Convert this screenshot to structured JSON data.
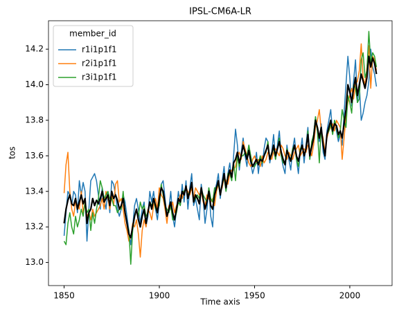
{
  "chart_data": {
    "type": "line",
    "title": "IPSL-CM6A-LR",
    "xlabel": "Time axis",
    "ylabel": "tos",
    "legend_title": "member_id",
    "legend": "upper left",
    "xlim": [
      1841.8,
      2022.2
    ],
    "xticks": [
      1850,
      1900,
      1950,
      2000
    ],
    "ylim": [
      12.87,
      14.36
    ],
    "yticks": [
      {
        "value": 13,
        "label": "13.0"
      },
      13.2,
      13.4,
      13.6,
      13.8,
      {
        "value": 14,
        "label": "14.0"
      },
      14.2
    ],
    "x": [
      1850,
      1851,
      1852,
      1853,
      1854,
      1855,
      1856,
      1857,
      1858,
      1859,
      1860,
      1861,
      1862,
      1863,
      1864,
      1865,
      1866,
      1867,
      1868,
      1869,
      1870,
      1871,
      1872,
      1873,
      1874,
      1875,
      1876,
      1877,
      1878,
      1879,
      1880,
      1881,
      1882,
      1883,
      1884,
      1885,
      1886,
      1887,
      1888,
      1889,
      1890,
      1891,
      1892,
      1893,
      1894,
      1895,
      1896,
      1897,
      1898,
      1899,
      1900,
      1901,
      1902,
      1903,
      1904,
      1905,
      1906,
      1907,
      1908,
      1909,
      1910,
      1911,
      1912,
      1913,
      1914,
      1915,
      1916,
      1917,
      1918,
      1919,
      1920,
      1921,
      1922,
      1923,
      1924,
      1925,
      1926,
      1927,
      1928,
      1929,
      1930,
      1931,
      1932,
      1933,
      1934,
      1935,
      1936,
      1937,
      1938,
      1939,
      1940,
      1941,
      1942,
      1943,
      1944,
      1945,
      1946,
      1947,
      1948,
      1949,
      1950,
      1951,
      1952,
      1953,
      1954,
      1955,
      1956,
      1957,
      1958,
      1959,
      1960,
      1961,
      1962,
      1963,
      1964,
      1965,
      1966,
      1967,
      1968,
      1969,
      1970,
      1971,
      1972,
      1973,
      1974,
      1975,
      1976,
      1977,
      1978,
      1979,
      1980,
      1981,
      1982,
      1983,
      1984,
      1985,
      1986,
      1987,
      1988,
      1989,
      1990,
      1991,
      1992,
      1993,
      1994,
      1995,
      1996,
      1997,
      1998,
      1999,
      2000,
      2001,
      2002,
      2003,
      2004,
      2005,
      2006,
      2007,
      2008,
      2009,
      2010,
      2011,
      2012,
      2013,
      2014
    ],
    "series": [
      {
        "name": "r1i1p1f1",
        "color": "#1f77b4",
        "values": [
          13.15,
          13.28,
          13.4,
          13.38,
          13.32,
          13.4,
          13.38,
          13.28,
          13.46,
          13.38,
          13.45,
          13.4,
          13.12,
          13.3,
          13.46,
          13.48,
          13.5,
          13.46,
          13.38,
          13.3,
          13.42,
          13.36,
          13.3,
          13.4,
          13.28,
          13.46,
          13.44,
          13.38,
          13.3,
          13.26,
          13.3,
          13.38,
          13.34,
          13.26,
          13.18,
          13.1,
          13.2,
          13.32,
          13.36,
          13.3,
          13.22,
          13.3,
          13.34,
          13.2,
          13.26,
          13.4,
          13.34,
          13.4,
          13.3,
          13.24,
          13.34,
          13.44,
          13.46,
          13.36,
          13.26,
          13.3,
          13.4,
          13.26,
          13.2,
          13.3,
          13.4,
          13.32,
          13.44,
          13.34,
          13.46,
          13.3,
          13.42,
          13.5,
          13.32,
          13.36,
          13.3,
          13.24,
          13.44,
          13.36,
          13.22,
          13.3,
          13.42,
          13.26,
          13.2,
          13.4,
          13.44,
          13.5,
          13.36,
          13.46,
          13.54,
          13.4,
          13.5,
          13.56,
          13.46,
          13.6,
          13.75,
          13.66,
          13.52,
          13.62,
          13.7,
          13.6,
          13.54,
          13.66,
          13.56,
          13.5,
          13.54,
          13.62,
          13.5,
          13.6,
          13.54,
          13.64,
          13.7,
          13.68,
          13.56,
          13.62,
          13.72,
          13.58,
          13.66,
          13.74,
          13.6,
          13.54,
          13.5,
          13.66,
          13.58,
          13.52,
          13.64,
          13.7,
          13.58,
          13.5,
          13.62,
          13.7,
          13.56,
          13.66,
          13.76,
          13.58,
          13.66,
          13.72,
          13.82,
          13.74,
          13.68,
          13.78,
          13.62,
          13.58,
          13.74,
          13.8,
          13.86,
          13.72,
          13.8,
          13.74,
          13.68,
          13.72,
          13.66,
          13.84,
          14.0,
          14.16,
          14.04,
          13.88,
          14.02,
          14.14,
          13.9,
          14.0,
          13.8,
          13.84,
          13.9,
          13.94,
          14.02,
          14.2,
          14.1,
          14.06,
          13.99
        ]
      },
      {
        "name": "r2i1p1f1",
        "color": "#ff7f0e",
        "values": [
          13.39,
          13.55,
          13.62,
          13.4,
          13.3,
          13.26,
          13.34,
          13.32,
          13.3,
          13.4,
          13.28,
          13.34,
          13.26,
          13.28,
          13.24,
          13.3,
          13.26,
          13.28,
          13.3,
          13.32,
          13.36,
          13.3,
          13.4,
          13.36,
          13.3,
          13.38,
          13.32,
          13.44,
          13.46,
          13.34,
          13.36,
          13.3,
          13.22,
          13.18,
          13.12,
          13.14,
          13.22,
          13.2,
          13.24,
          13.16,
          13.03,
          13.18,
          13.24,
          13.2,
          13.3,
          13.28,
          13.24,
          13.32,
          13.36,
          13.3,
          13.42,
          13.38,
          13.36,
          13.3,
          13.22,
          13.32,
          13.3,
          13.34,
          13.28,
          13.32,
          13.34,
          13.38,
          13.36,
          13.4,
          13.42,
          13.4,
          13.38,
          13.42,
          13.36,
          13.42,
          13.4,
          13.38,
          13.4,
          13.34,
          13.32,
          13.38,
          13.36,
          13.34,
          13.36,
          13.32,
          13.4,
          13.44,
          13.4,
          13.42,
          13.48,
          13.46,
          13.44,
          13.5,
          13.52,
          13.52,
          13.54,
          13.6,
          13.62,
          13.58,
          13.68,
          13.64,
          13.6,
          13.56,
          13.54,
          13.58,
          13.6,
          13.56,
          13.58,
          13.54,
          13.6,
          13.56,
          13.58,
          13.62,
          13.6,
          13.58,
          13.62,
          13.64,
          13.62,
          13.6,
          13.66,
          13.64,
          13.6,
          13.58,
          13.62,
          13.6,
          13.58,
          13.62,
          13.64,
          13.66,
          13.6,
          13.62,
          13.64,
          13.62,
          13.66,
          13.64,
          13.6,
          13.66,
          13.76,
          13.8,
          13.86,
          13.74,
          13.7,
          13.62,
          13.7,
          13.74,
          13.76,
          13.78,
          13.74,
          13.8,
          13.78,
          13.76,
          13.58,
          13.7,
          13.82,
          13.9,
          13.94,
          13.98,
          13.92,
          14.0,
          14.02,
          14.08,
          14.23,
          14.04,
          14.0,
          14.1,
          14.22,
          13.98,
          14.16,
          14.14,
          14.08
        ]
      },
      {
        "name": "r3i1p1f1",
        "color": "#2ca02c",
        "values": [
          13.12,
          13.1,
          13.22,
          13.28,
          13.2,
          13.16,
          13.26,
          13.2,
          13.24,
          13.3,
          13.26,
          13.34,
          13.28,
          13.3,
          13.18,
          13.28,
          13.22,
          13.3,
          13.36,
          13.46,
          13.42,
          13.36,
          13.38,
          13.4,
          13.36,
          13.36,
          13.32,
          13.32,
          13.28,
          13.3,
          13.3,
          13.4,
          13.28,
          13.22,
          13.18,
          12.99,
          13.18,
          13.26,
          13.3,
          13.26,
          13.34,
          13.3,
          13.32,
          13.26,
          13.28,
          13.34,
          13.32,
          13.36,
          13.3,
          13.3,
          13.32,
          13.44,
          13.38,
          13.32,
          13.3,
          13.28,
          13.32,
          13.24,
          13.24,
          13.28,
          13.34,
          13.32,
          13.4,
          13.4,
          13.42,
          13.38,
          13.4,
          13.44,
          13.34,
          13.36,
          13.38,
          13.36,
          13.42,
          13.38,
          13.36,
          13.34,
          13.42,
          13.36,
          13.34,
          13.42,
          13.42,
          13.44,
          13.38,
          13.44,
          13.48,
          13.4,
          13.5,
          13.5,
          13.46,
          13.56,
          13.46,
          13.6,
          13.54,
          13.6,
          13.6,
          13.62,
          13.6,
          13.66,
          13.6,
          13.54,
          13.54,
          13.56,
          13.56,
          13.6,
          13.56,
          13.6,
          13.62,
          13.68,
          13.58,
          13.62,
          13.64,
          13.58,
          13.64,
          13.7,
          13.6,
          13.56,
          13.56,
          13.64,
          13.6,
          13.58,
          13.64,
          13.66,
          13.58,
          13.54,
          13.64,
          13.66,
          13.6,
          13.64,
          13.74,
          13.58,
          13.68,
          13.72,
          13.82,
          13.74,
          13.56,
          13.76,
          13.66,
          13.6,
          13.72,
          13.74,
          13.78,
          13.72,
          13.8,
          13.76,
          13.7,
          13.74,
          13.86,
          13.8,
          13.76,
          13.94,
          13.9,
          13.84,
          14.0,
          13.98,
          13.9,
          13.92,
          14.14,
          14.18,
          14.04,
          14.08,
          14.3,
          14.12,
          14.18,
          14.16,
          14.1
        ]
      },
      {
        "color": "#000000",
        "values": [
          13.22,
          13.3,
          13.35,
          13.38,
          13.33,
          13.32,
          13.36,
          13.3,
          13.34,
          13.38,
          13.33,
          13.36,
          13.22,
          13.28,
          13.3,
          13.36,
          13.32,
          13.35,
          13.33,
          13.36,
          13.4,
          13.34,
          13.36,
          13.38,
          13.32,
          13.4,
          13.36,
          13.38,
          13.35,
          13.3,
          13.32,
          13.36,
          13.28,
          13.22,
          13.16,
          13.14,
          13.2,
          13.26,
          13.3,
          13.24,
          13.2,
          13.26,
          13.3,
          13.22,
          13.28,
          13.34,
          13.3,
          13.36,
          13.32,
          13.28,
          13.36,
          13.42,
          13.4,
          13.33,
          13.26,
          13.3,
          13.34,
          13.28,
          13.24,
          13.3,
          13.36,
          13.34,
          13.4,
          13.38,
          13.43,
          13.36,
          13.4,
          13.45,
          13.34,
          13.38,
          13.36,
          13.33,
          13.42,
          13.36,
          13.3,
          13.34,
          13.4,
          13.32,
          13.3,
          13.38,
          13.42,
          13.46,
          13.38,
          13.44,
          13.5,
          13.42,
          13.48,
          13.52,
          13.48,
          13.56,
          13.58,
          13.62,
          13.56,
          13.6,
          13.66,
          13.62,
          13.58,
          13.63,
          13.57,
          13.54,
          13.56,
          13.58,
          13.55,
          13.58,
          13.57,
          13.6,
          13.63,
          13.66,
          13.58,
          13.61,
          13.66,
          13.6,
          13.64,
          13.68,
          13.62,
          13.58,
          13.55,
          13.63,
          13.6,
          13.57,
          13.62,
          13.66,
          13.6,
          13.57,
          13.62,
          13.66,
          13.6,
          13.64,
          13.72,
          13.6,
          13.65,
          13.7,
          13.8,
          13.76,
          13.7,
          13.76,
          13.66,
          13.6,
          13.72,
          13.76,
          13.8,
          13.74,
          13.78,
          13.77,
          13.72,
          13.74,
          13.7,
          13.78,
          13.86,
          14.0,
          13.96,
          13.9,
          13.98,
          14.04,
          13.94,
          14.0,
          14.06,
          14.02,
          13.98,
          14.04,
          14.16,
          14.1,
          14.15,
          14.12,
          14.06
        ]
      }
    ]
  }
}
